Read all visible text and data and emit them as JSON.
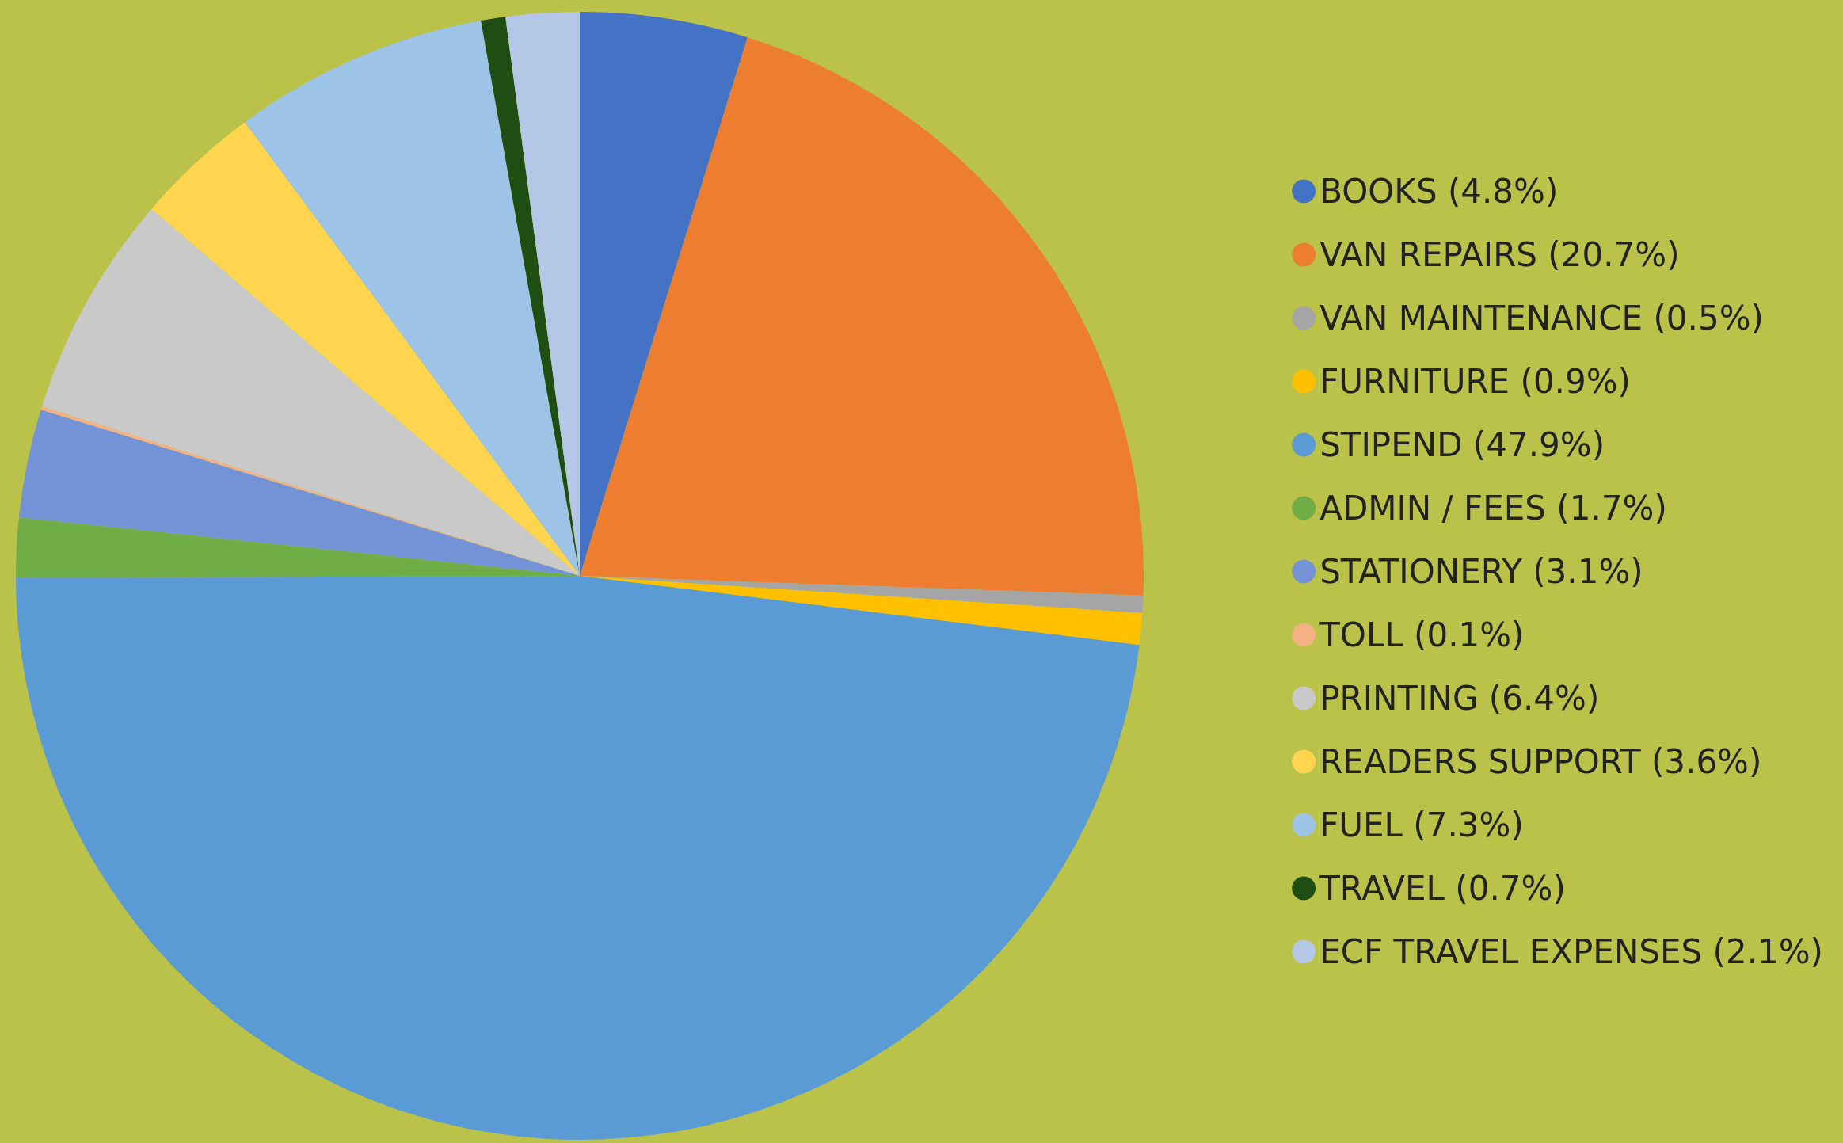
{
  "chart_data": {
    "type": "pie",
    "categories": [
      "BOOKS (4.8%)",
      "VAN REPAIRS (20.7%)",
      "VAN MAINTENANCE (0.5%)",
      "FURNITURE (0.9%)",
      "STIPEND (47.9%)",
      "ADMIN / FEES (1.7%)",
      "STATIONERY (3.1%)",
      "TOLL (0.1%)",
      "PRINTING (6.4%)",
      "READERS SUPPORT (3.6%)",
      "FUEL (7.3%)",
      "TRAVEL (0.7%)",
      "ECF TRAVEL EXPENSES (2.1%)"
    ],
    "values": [
      4.8,
      20.7,
      0.5,
      0.9,
      47.9,
      1.7,
      3.1,
      0.1,
      6.4,
      3.6,
      7.3,
      0.7,
      2.1
    ],
    "colors": [
      "#4472c4",
      "#ed7d31",
      "#a5a5a5",
      "#ffc000",
      "#5b9bd5",
      "#70ad47",
      "#7393d6",
      "#f4b183",
      "#c9c9c9",
      "#ffd54f",
      "#9dc3e6",
      "#1f4e12",
      "#b4c7e7"
    ],
    "legend": "right"
  }
}
